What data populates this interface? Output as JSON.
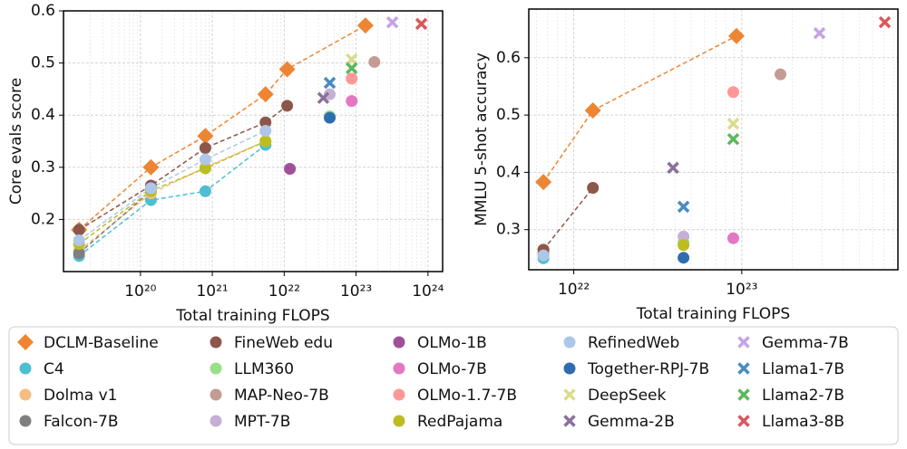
{
  "chart_data": [
    {
      "type": "scatter",
      "x_label": "Total training FLOPS",
      "y_label": "Core evals score",
      "xscale": "log",
      "xlim": [
        8.5e+18,
        1.6e+24
      ],
      "xticks": [
        {
          "value": 1e+20,
          "label": "10²⁰"
        },
        {
          "value": 1e+21,
          "label": "10²¹"
        },
        {
          "value": 1e+22,
          "label": "10²²"
        },
        {
          "value": 1e+23,
          "label": "10²³"
        },
        {
          "value": 1e+24,
          "label": "10²⁴"
        }
      ],
      "ylim": [
        0.1,
        0.6
      ],
      "yticks": [
        0.2,
        0.3,
        0.4,
        0.5,
        0.6
      ],
      "grid": true,
      "series": [
        {
          "name": "DCLM-Baseline",
          "color": "#ee8533",
          "marker": "diamond",
          "x": [
            1.4e+19,
            1.4e+20,
            8e+20,
            5.5e+21,
            1.1e+22,
            1.35e+23
          ],
          "values": [
            0.18,
            0.3,
            0.36,
            0.44,
            0.488,
            0.572
          ]
        },
        {
          "name": "C4",
          "color": "#4dbfd0",
          "marker": "circle",
          "x": [
            1.4e+19,
            1.4e+20,
            8e+20,
            5.5e+21
          ],
          "values": [
            0.13,
            0.237,
            0.254,
            0.343
          ]
        },
        {
          "name": "Dolma v1",
          "color": "#f5bd80",
          "marker": "circle",
          "x": [
            1.4e+19,
            1.4e+20,
            8e+20,
            5.5e+21
          ],
          "values": [
            0.14,
            0.25,
            0.3,
            0.35
          ]
        },
        {
          "name": "Falcon-7B",
          "color": "#7f7f7f",
          "marker": "circle",
          "x": [
            1.4e+19,
            1.4e+20
          ],
          "values": [
            0.135,
            0.255
          ]
        },
        {
          "name": "FineWeb edu",
          "color": "#8c564b",
          "marker": "circle",
          "x": [
            1.4e+19,
            1.4e+20,
            8e+20,
            5.5e+21,
            1.1e+22
          ],
          "values": [
            0.18,
            0.265,
            0.337,
            0.386,
            0.418
          ]
        },
        {
          "name": "LLM360",
          "color": "#98df8a",
          "marker": "circle",
          "x": [
            4.3e+22
          ],
          "values": [
            0.398
          ]
        },
        {
          "name": "MAP-Neo-7B",
          "color": "#c49c94",
          "marker": "circle",
          "x": [
            1.8e+23
          ],
          "values": [
            0.502
          ]
        },
        {
          "name": "MPT-7B",
          "color": "#c5b0d5",
          "marker": "circle",
          "x": [
            4.3e+22
          ],
          "values": [
            0.44
          ]
        },
        {
          "name": "OLMo-1B",
          "color": "#a0509a",
          "marker": "circle",
          "x": [
            1.2e+22
          ],
          "values": [
            0.297
          ]
        },
        {
          "name": "OLMo-7B",
          "color": "#e377c2",
          "marker": "circle",
          "x": [
            8.7e+22
          ],
          "values": [
            0.427
          ]
        },
        {
          "name": "OLMo-1.7-7B",
          "color": "#ff9896",
          "marker": "circle",
          "x": [
            8.7e+22
          ],
          "values": [
            0.47
          ]
        },
        {
          "name": "RedPajama",
          "color": "#bcbd22",
          "marker": "circle",
          "x": [
            1.4e+19,
            1.4e+20,
            8e+20,
            5.5e+21
          ],
          "values": [
            0.153,
            0.255,
            0.298,
            0.35
          ]
        },
        {
          "name": "RefinedWeb",
          "color": "#aec7e8",
          "marker": "circle",
          "x": [
            1.4e+19,
            1.4e+20,
            8e+20,
            5.5e+21
          ],
          "values": [
            0.16,
            0.26,
            0.315,
            0.37
          ]
        },
        {
          "name": "Together-RPJ-7B",
          "color": "#2f6db0",
          "marker": "circle",
          "x": [
            4.3e+22
          ],
          "values": [
            0.395
          ]
        },
        {
          "name": "DeepSeek",
          "color": "#dbdb8d",
          "marker": "x",
          "x": [
            8.7e+22
          ],
          "values": [
            0.507
          ]
        },
        {
          "name": "Gemma-2B",
          "color": "#8a709c",
          "marker": "x",
          "x": [
            3.5e+22
          ],
          "values": [
            0.433
          ]
        },
        {
          "name": "Gemma-7B",
          "color": "#c5a3e6",
          "marker": "x",
          "x": [
            3.2e+23
          ],
          "values": [
            0.578
          ]
        },
        {
          "name": "Llama1-7B",
          "color": "#4a8bc0",
          "marker": "x",
          "x": [
            4.3e+22
          ],
          "values": [
            0.462
          ]
        },
        {
          "name": "Llama2-7B",
          "color": "#5cb85c",
          "marker": "x",
          "x": [
            8.7e+22
          ],
          "values": [
            0.49
          ]
        },
        {
          "name": "Llama3-8B",
          "color": "#d9585b",
          "marker": "x",
          "x": [
            8.1e+23
          ],
          "values": [
            0.575
          ]
        }
      ]
    },
    {
      "type": "scatter",
      "x_label": "Total training FLOPS",
      "y_label": "MMLU 5-shot accuracy",
      "xscale": "log",
      "xlim": [
        5.4e+21,
        8.5e+23
      ],
      "xticks": [
        {
          "value": 1e+22,
          "label": "10²²"
        },
        {
          "value": 1e+23,
          "label": "10²³"
        }
      ],
      "ylim": [
        0.23,
        0.685
      ],
      "yticks": [
        0.3,
        0.4,
        0.5,
        0.6
      ],
      "grid": true,
      "series": [
        {
          "name": "DCLM-Baseline",
          "color": "#ee8533",
          "marker": "diamond",
          "x": [
            6.6e+21,
            1.3e+22,
            9.3e+22
          ],
          "values": [
            0.383,
            0.508,
            0.638
          ]
        },
        {
          "name": "C4",
          "color": "#4dbfd0",
          "marker": "circle",
          "x": [
            6.6e+21
          ],
          "values": [
            0.25
          ]
        },
        {
          "name": "Dolma v1",
          "color": "#f5bd80",
          "marker": "circle",
          "x": [
            6.6e+21
          ],
          "values": [
            0.265
          ]
        },
        {
          "name": "Falcon-7B",
          "color": "#7f7f7f",
          "marker": "circle",
          "x": [
            6.6e+21
          ],
          "values": [
            0.258
          ]
        },
        {
          "name": "FineWeb edu",
          "color": "#8c564b",
          "marker": "circle",
          "x": [
            6.6e+21,
            1.3e+22
          ],
          "values": [
            0.265,
            0.373
          ]
        },
        {
          "name": "LLM360",
          "color": "#98df8a",
          "marker": "circle",
          "x": [
            4.5e+22
          ],
          "values": [
            0.278
          ]
        },
        {
          "name": "MAP-Neo-7B",
          "color": "#c49c94",
          "marker": "circle",
          "x": [
            1.7e+23
          ],
          "values": [
            0.571
          ]
        },
        {
          "name": "MPT-7B",
          "color": "#c5b0d5",
          "marker": "circle",
          "x": [
            4.5e+22
          ],
          "values": [
            0.288
          ]
        },
        {
          "name": "OLMo-7B",
          "color": "#e377c2",
          "marker": "circle",
          "x": [
            8.9e+22
          ],
          "values": [
            0.285
          ]
        },
        {
          "name": "OLMo-1.7-7B",
          "color": "#ff9896",
          "marker": "circle",
          "x": [
            8.9e+22
          ],
          "values": [
            0.54
          ]
        },
        {
          "name": "RedPajama",
          "color": "#bcbd22",
          "marker": "circle",
          "x": [
            4.5e+22
          ],
          "values": [
            0.273
          ]
        },
        {
          "name": "RefinedWeb",
          "color": "#aec7e8",
          "marker": "circle",
          "x": [
            6.6e+21
          ],
          "values": [
            0.255
          ]
        },
        {
          "name": "Together-RPJ-7B",
          "color": "#2f6db0",
          "marker": "circle",
          "x": [
            4.5e+22
          ],
          "values": [
            0.251
          ]
        },
        {
          "name": "DeepSeek",
          "color": "#dbdb8d",
          "marker": "x",
          "x": [
            8.9e+22
          ],
          "values": [
            0.485
          ]
        },
        {
          "name": "Gemma-2B",
          "color": "#8a709c",
          "marker": "x",
          "x": [
            3.9e+22
          ],
          "values": [
            0.408
          ]
        },
        {
          "name": "Gemma-7B",
          "color": "#c5a3e6",
          "marker": "x",
          "x": [
            2.9e+23
          ],
          "values": [
            0.643
          ]
        },
        {
          "name": "Llama1-7B",
          "color": "#4a8bc0",
          "marker": "x",
          "x": [
            4.5e+22
          ],
          "values": [
            0.34
          ]
        },
        {
          "name": "Llama2-7B",
          "color": "#5cb85c",
          "marker": "x",
          "x": [
            8.9e+22
          ],
          "values": [
            0.458
          ]
        },
        {
          "name": "Llama3-8B",
          "color": "#d9585b",
          "marker": "x",
          "x": [
            7.1e+23
          ],
          "values": [
            0.662
          ]
        }
      ]
    }
  ]
}
